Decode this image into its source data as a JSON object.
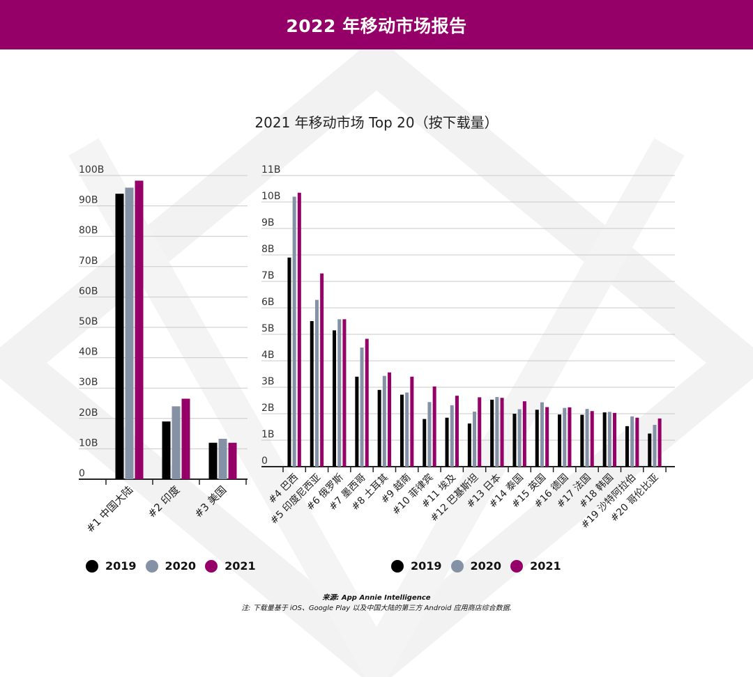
{
  "header": {
    "title": "2022 年移动市场报告"
  },
  "colors": {
    "brand": "#950068",
    "y2019": "#000000",
    "y2020": "#8592a6",
    "y2021": "#950068"
  },
  "legend": {
    "items": [
      "2019",
      "2020",
      "2021"
    ]
  },
  "footer": {
    "source": "来源: App Annie Intelligence",
    "note": "注: 下载量基于 iOS、Google Play 以及中国大陆的第三方 Android 应用商店综合数据."
  },
  "chart_data": [
    {
      "type": "bar",
      "title": "2021 年移动市场 Top 20（按下载量）",
      "ylim": [
        0,
        100
      ],
      "yticks": [
        "0",
        "10B",
        "20B",
        "30B",
        "40B",
        "50B",
        "60B",
        "70B",
        "80B",
        "90B",
        "100B"
      ],
      "unit": "B",
      "categories": [
        "#1 中国大陆",
        "#2 印度",
        "#3 美国"
      ],
      "series": [
        {
          "name": "2019",
          "values": [
            94,
            19,
            12
          ]
        },
        {
          "name": "2020",
          "values": [
            96,
            24,
            13.3
          ]
        },
        {
          "name": "2021",
          "values": [
            98.3,
            26.5,
            12
          ]
        }
      ]
    },
    {
      "type": "bar",
      "title": "2021 年移动市场 Top 20（按下载量）",
      "ylim": [
        0,
        11
      ],
      "yticks": [
        "0",
        "1B",
        "2B",
        "3B",
        "4B",
        "5B",
        "6B",
        "7B",
        "8B",
        "9B",
        "10B",
        "11B"
      ],
      "unit": "B",
      "categories": [
        "#4 巴西",
        "#5 印度尼西亚",
        "#6 俄罗斯",
        "#7 墨西哥",
        "#8 土耳其",
        "#9 越南",
        "#10 菲律宾",
        "#11 埃及",
        "#12 巴基斯坦",
        "#13 日本",
        "#14 泰国",
        "#15 英国",
        "#16 德国",
        "#17 法国",
        "#18 韩国",
        "#19 沙特阿拉伯",
        "#20 哥伦比亚"
      ],
      "series": [
        {
          "name": "2019",
          "values": [
            7.9,
            5.5,
            5.15,
            3.4,
            2.9,
            2.72,
            1.8,
            1.85,
            1.63,
            2.53,
            2.0,
            2.15,
            1.97,
            1.96,
            2.05,
            1.53,
            1.25
          ]
        },
        {
          "name": "2020",
          "values": [
            10.2,
            6.3,
            5.57,
            4.5,
            3.43,
            2.8,
            2.44,
            2.32,
            2.08,
            2.63,
            2.17,
            2.43,
            2.22,
            2.18,
            2.07,
            1.9,
            1.58
          ]
        },
        {
          "name": "2021",
          "values": [
            10.35,
            7.3,
            5.57,
            4.83,
            3.56,
            3.4,
            3.03,
            2.68,
            2.62,
            2.6,
            2.47,
            2.25,
            2.24,
            2.1,
            2.03,
            1.85,
            1.82
          ]
        }
      ]
    }
  ]
}
